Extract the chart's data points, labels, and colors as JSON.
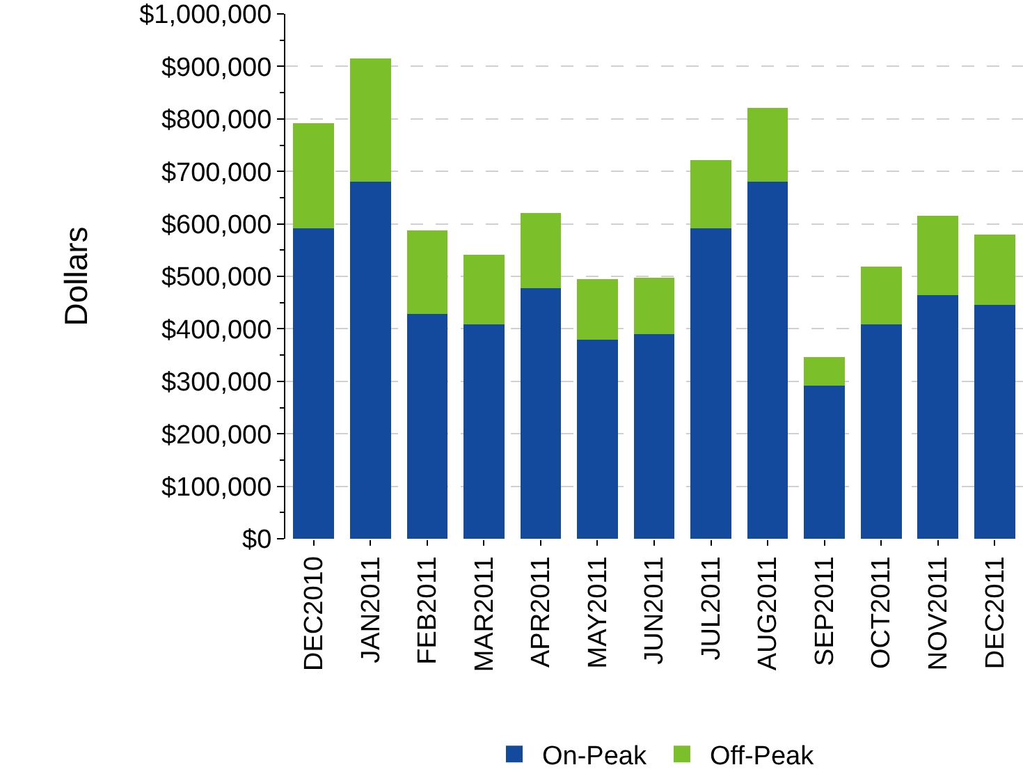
{
  "chart_data": {
    "type": "bar",
    "stacked": true,
    "ylabel": "Dollars",
    "categories": [
      "DEC2010",
      "JAN2011",
      "FEB2011",
      "MAR2011",
      "APR2011",
      "MAY2011",
      "JUN2011",
      "JUL2011",
      "AUG2011",
      "SEP2011",
      "OCT2011",
      "NOV2011",
      "DEC2011"
    ],
    "series": [
      {
        "name": "On-Peak",
        "color": "#134a9e",
        "values": [
          592000,
          680000,
          428000,
          408000,
          477000,
          379000,
          390000,
          592000,
          680000,
          292000,
          408000,
          464000,
          446000
        ]
      },
      {
        "name": "Off-Peak",
        "color": "#7bbf2a",
        "values": [
          200000,
          235000,
          159000,
          133000,
          144000,
          116000,
          107000,
          129000,
          141000,
          54000,
          110000,
          151000,
          133000
        ]
      }
    ],
    "ylim": [
      0,
      1000000
    ],
    "yticks": [
      {
        "value": 0,
        "label": "$0"
      },
      {
        "value": 100000,
        "label": "$100,000"
      },
      {
        "value": 200000,
        "label": "$200,000"
      },
      {
        "value": 300000,
        "label": "$300,000"
      },
      {
        "value": 400000,
        "label": "$400,000"
      },
      {
        "value": 500000,
        "label": "$500,000"
      },
      {
        "value": 600000,
        "label": "$600,000"
      },
      {
        "value": 700000,
        "label": "$700,000"
      },
      {
        "value": 800000,
        "label": "$800,000"
      },
      {
        "value": 900000,
        "label": "$900,000"
      },
      {
        "value": 1000000,
        "label": "$1,000,000"
      }
    ],
    "grid": "y",
    "legend": "bottom"
  }
}
